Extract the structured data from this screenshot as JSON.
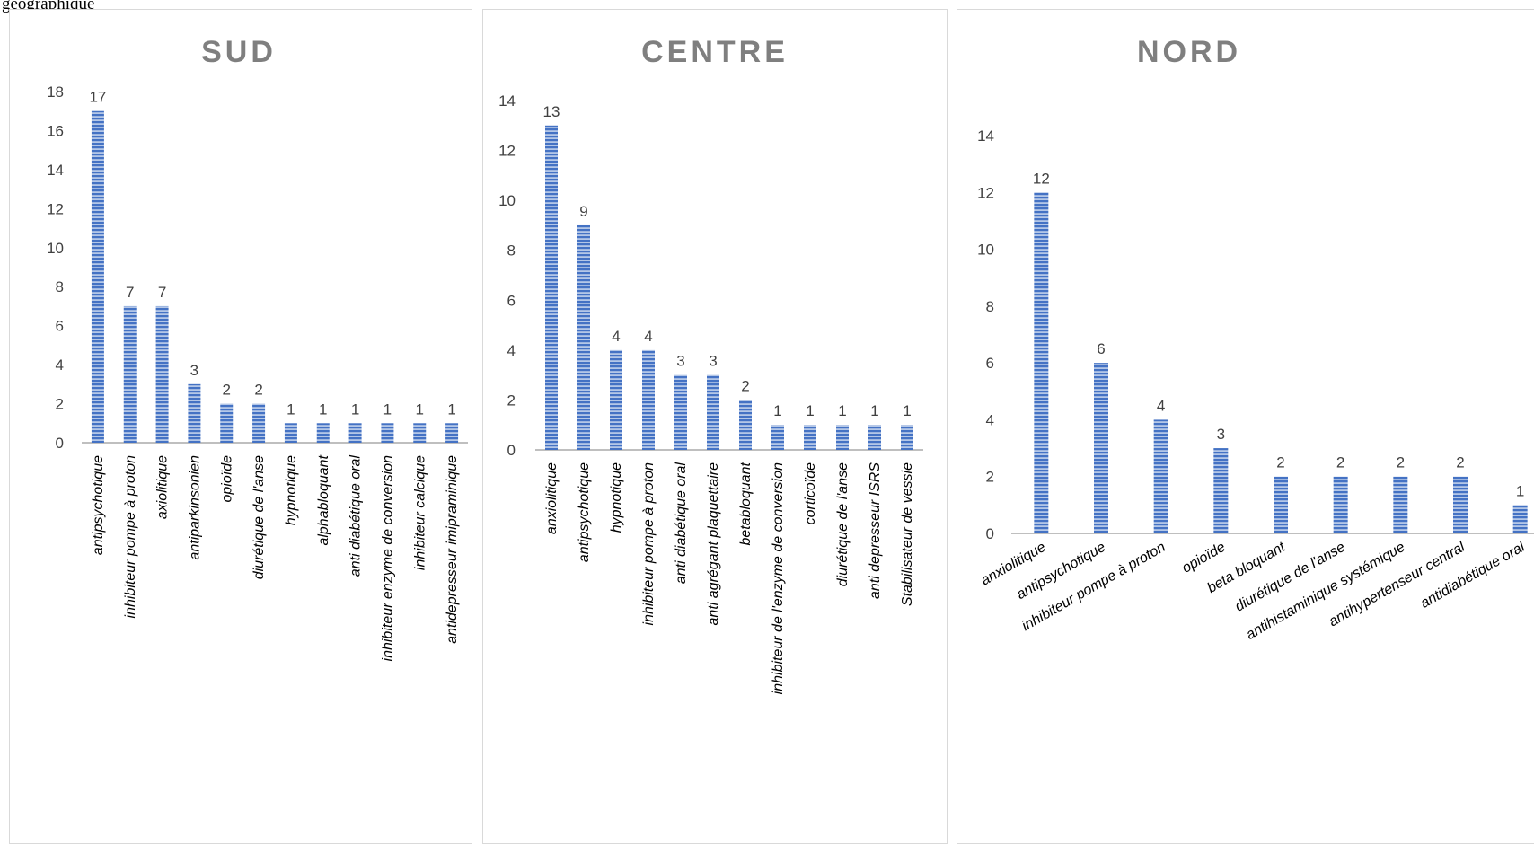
{
  "caption": "géographique",
  "colors": {
    "bar": "#4472c4",
    "bar_light": "#b4c7e7",
    "axis": "#bfbfbf",
    "title": "#7f7f7f"
  },
  "chart_data": [
    {
      "type": "bar",
      "title": "SUD",
      "categories": [
        "antipsychotique",
        "inhibiteur pompe à proton",
        "axiolitique",
        "antiparkinsonien",
        "opioïde",
        "diurétique de l'anse",
        "hypnotique",
        "alphabloquant",
        "anti diabétique oral",
        "inhibiteur enzyme de conversion",
        "inhibiteur calcique",
        "antidepresseur imipraminique"
      ],
      "values": [
        17,
        7,
        7,
        3,
        2,
        2,
        1,
        1,
        1,
        1,
        1,
        1
      ],
      "yticks": [
        0,
        2,
        4,
        6,
        8,
        10,
        12,
        14,
        16,
        18
      ],
      "ylim": [
        0,
        18
      ],
      "grid": false,
      "label_rotation": "vertical"
    },
    {
      "type": "bar",
      "title": "CENTRE",
      "categories": [
        "anxiolitique",
        "antipsychotique",
        "hypnotique",
        "inhibiteur pompe à proton",
        "anti diabétique oral",
        "anti agrégant plaquettaire",
        "betabloquant",
        "inhibiteur de l'enzyme de conversion",
        "corticoïde",
        "diurétique de l'anse",
        "anti depresseur ISRS",
        "Stabilisateur de vessie"
      ],
      "values": [
        13,
        9,
        4,
        4,
        3,
        3,
        2,
        1,
        1,
        1,
        1,
        1
      ],
      "yticks": [
        0,
        2,
        4,
        6,
        8,
        10,
        12,
        14
      ],
      "ylim": [
        0,
        14
      ],
      "grid": false,
      "label_rotation": "vertical"
    },
    {
      "type": "bar",
      "title": "NORD",
      "categories": [
        "anxiolitique",
        "antipsychotique",
        "inhibiteur pompe à proton",
        "opioïde",
        "beta bloquant",
        "diurétique de l'anse",
        "antihistaminique systémique",
        "antihypertenseur central",
        "antidiabétique oral"
      ],
      "values": [
        12,
        6,
        4,
        3,
        2,
        2,
        2,
        2,
        1
      ],
      "yticks": [
        0,
        2,
        4,
        6,
        8,
        10,
        12,
        14
      ],
      "ylim": [
        0,
        14
      ],
      "grid": false,
      "label_rotation": "diagonal"
    }
  ]
}
